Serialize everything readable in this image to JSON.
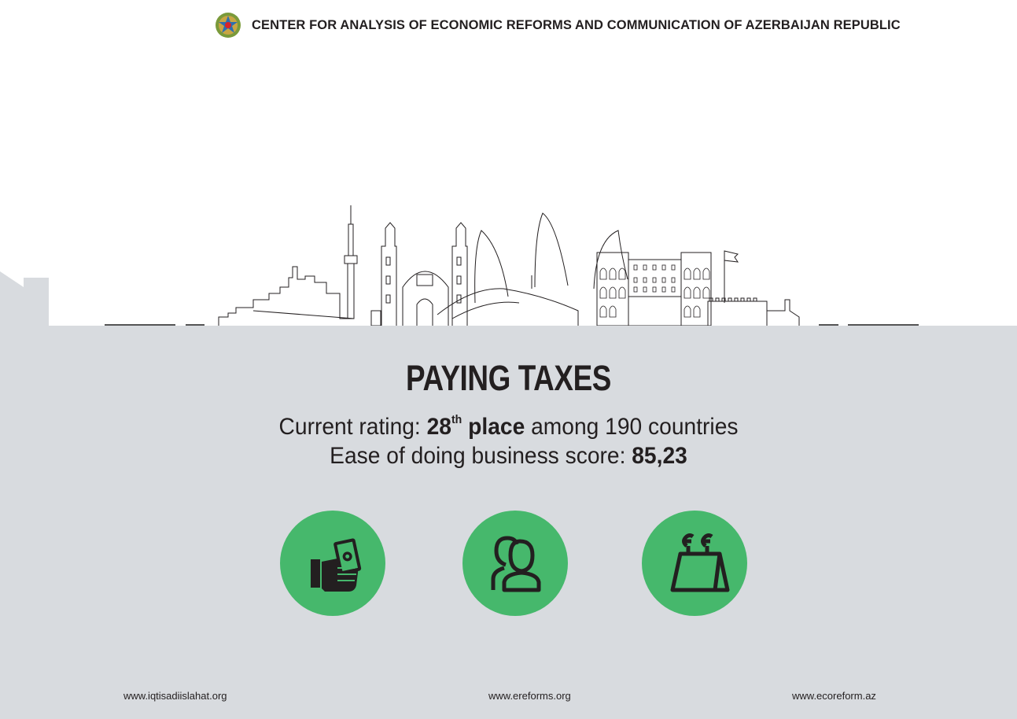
{
  "header": {
    "title": "CENTER FOR ANALYSIS OF ECONOMIC REFORMS AND COMMUNICATION OF AZERBAIJAN REPUBLIC"
  },
  "main": {
    "title": "PAYING TAXES",
    "rating_prefix": "Current rating: ",
    "rating_number": "28",
    "rating_suffix": "th",
    "rating_place": " place",
    "rating_rest": " among 190 countries",
    "score_prefix": "Ease of doing business score: ",
    "score_value": "85,23"
  },
  "icons": [
    {
      "name": "hand-with-money-icon"
    },
    {
      "name": "people-icon"
    },
    {
      "name": "euro-calendar-icon"
    }
  ],
  "footer": {
    "links": [
      "www.iqtisadiislahat.org",
      "www.ereforms.org",
      "www.ecoreform.az"
    ]
  },
  "colors": {
    "accent": "#46b86c",
    "panel": "#d8dbdf",
    "text": "#231f20"
  }
}
